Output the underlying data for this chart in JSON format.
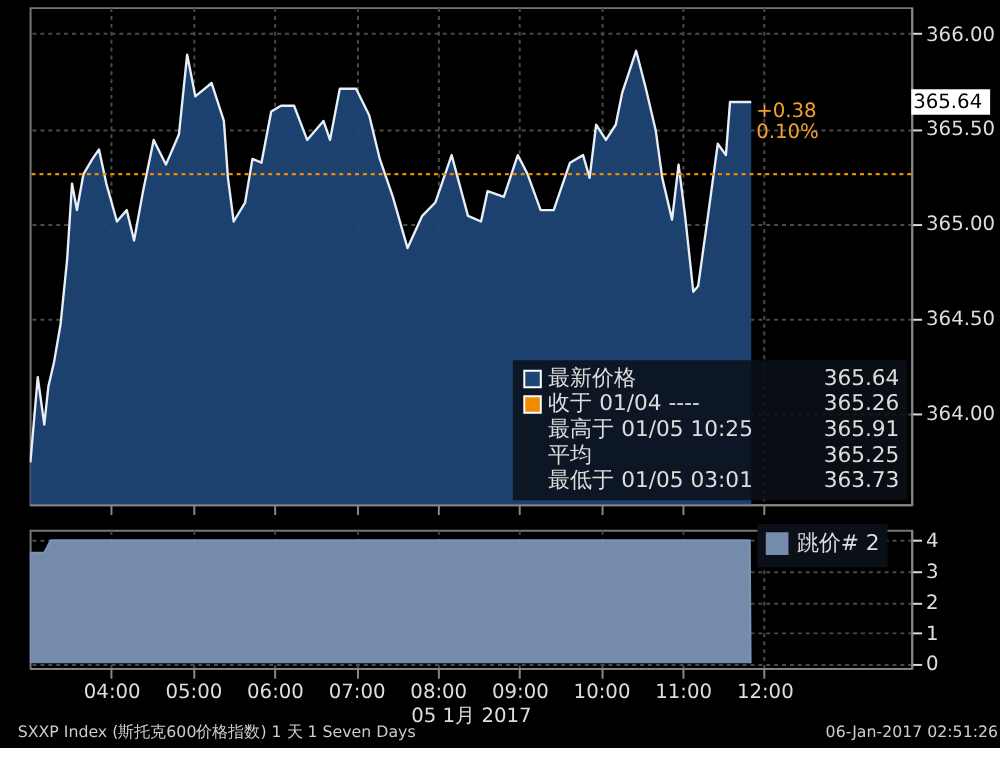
{
  "chart_data": [
    {
      "type": "area",
      "xlim": [
        3.0,
        13.8
      ],
      "ylim": [
        363.52,
        366.14
      ],
      "xticks": [
        {
          "value": 4,
          "label": null
        },
        {
          "value": 5,
          "label": null
        },
        {
          "value": 6,
          "label": null
        },
        {
          "value": 7,
          "label": null
        },
        {
          "value": 8,
          "label": null
        },
        {
          "value": 9,
          "label": null
        },
        {
          "value": 10,
          "label": null
        },
        {
          "value": 11,
          "label": null
        },
        {
          "value": 12,
          "label": null
        }
      ],
      "yticks": [
        {
          "value": 364,
          "label": "364.00"
        },
        {
          "value": 364.5,
          "label": "364.50"
        },
        {
          "value": 365,
          "label": "365.00"
        },
        {
          "value": 365.5,
          "label": "365.50"
        },
        {
          "value": 366,
          "label": "366.00"
        }
      ],
      "tick_labels": "y",
      "grid": true,
      "legend": "bottom right",
      "series": [
        {
          "name": "最新价格",
          "color": "#1d4575",
          "x": [
            3.01,
            3.1,
            3.18,
            3.23,
            3.3,
            3.38,
            3.46,
            3.52,
            3.58,
            3.66,
            3.77,
            3.85,
            3.94,
            4.07,
            4.19,
            4.28,
            4.39,
            4.52,
            4.67,
            4.83,
            4.93,
            5.03,
            5.23,
            5.38,
            5.43,
            5.5,
            5.64,
            5.73,
            5.84,
            5.96,
            6.08,
            6.24,
            6.4,
            6.6,
            6.68,
            6.8,
            7.0,
            7.16,
            7.29,
            7.45,
            7.63,
            7.81,
            7.97,
            8.17,
            8.37,
            8.53,
            8.61,
            8.81,
            8.98,
            9.1,
            9.26,
            9.42,
            9.62,
            9.78,
            9.86,
            9.94,
            10.06,
            10.18,
            10.26,
            10.43,
            10.55,
            10.67,
            10.75,
            10.87,
            10.95,
            11.03,
            11.13,
            11.19,
            11.31,
            11.43,
            11.53,
            11.58,
            11.84
          ],
          "values": [
            363.74,
            364.19,
            363.94,
            364.14,
            364.27,
            364.47,
            364.81,
            365.21,
            365.07,
            365.26,
            365.34,
            365.39,
            365.21,
            365.01,
            365.07,
            364.91,
            365.17,
            365.44,
            365.31,
            365.47,
            365.89,
            365.67,
            365.74,
            365.54,
            365.24,
            365.01,
            365.11,
            365.34,
            365.32,
            365.59,
            365.62,
            365.62,
            365.44,
            365.54,
            365.44,
            365.71,
            365.71,
            365.57,
            365.34,
            365.14,
            364.87,
            365.04,
            365.11,
            365.36,
            365.04,
            365.01,
            365.17,
            365.14,
            365.36,
            365.26,
            365.07,
            365.07,
            365.32,
            365.36,
            365.24,
            365.52,
            365.44,
            365.52,
            365.69,
            365.91,
            365.71,
            365.49,
            365.24,
            365.02,
            365.31,
            365.04,
            364.64,
            364.67,
            365.04,
            365.42,
            365.36,
            365.64,
            365.64
          ]
        }
      ],
      "ref_lines": [
        {
          "axis": "y",
          "value": 365.26,
          "label": "收于 01/04 ----",
          "color": "#f08a00",
          "line_style": "dotted"
        }
      ],
      "annotations": [
        "365.64",
        {
          "text": "+0.38",
          "x": 11.9,
          "y": 365.59
        },
        {
          "text": "0.10%",
          "x": 11.9,
          "y": 365.48
        },
        "365.64",
        "365.26",
        "最高于 01/05 10:25",
        "365.91",
        "平均",
        "365.25",
        "最低于 01/05 03:01",
        "363.73"
      ]
    },
    {
      "type": "area",
      "xlim": [
        3.0,
        13.8
      ],
      "ylim": [
        -0.15,
        4.35
      ],
      "xticks": [
        {
          "value": 4,
          "label": "04:00"
        },
        {
          "value": 5,
          "label": "05:00"
        },
        {
          "value": 6,
          "label": "06:00"
        },
        {
          "value": 7,
          "label": "07:00"
        },
        {
          "value": 8,
          "label": "08:00"
        },
        {
          "value": 9,
          "label": "09:00"
        },
        {
          "value": 10,
          "label": "10:00"
        },
        {
          "value": 11,
          "label": "11:00"
        },
        {
          "value": 12,
          "label": "12:00"
        }
      ],
      "yticks": [
        0,
        1,
        2,
        3,
        4
      ],
      "grid": true,
      "legend": "top right",
      "xlabel": "05 1月 2017",
      "series": [
        {
          "name": "跳价# 2",
          "color": "#7a92b4",
          "x": [
            3.0,
            3.18,
            3.26,
            11.82,
            11.83
          ],
          "values": [
            3.6,
            3.6,
            4,
            4,
            0
          ]
        }
      ],
      "annotations": [
        "SXXP Index (斯托克600价格指数) 1 天 1 Seven Days",
        "06-Jan-2017 02:51:26"
      ]
    }
  ]
}
